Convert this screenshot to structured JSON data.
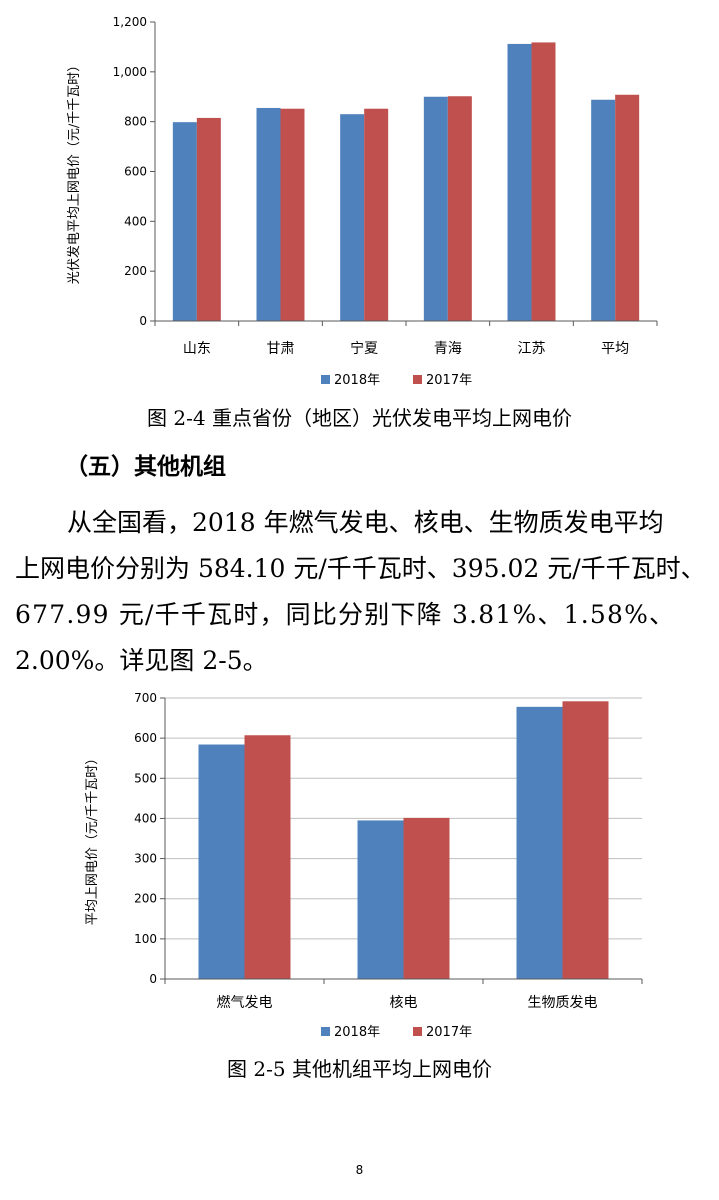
{
  "chart_data": [
    {
      "type": "bar",
      "categories": [
        "山东",
        "甘肃",
        "宁夏",
        "青海",
        "江苏",
        "平均"
      ],
      "series": [
        {
          "name": "2018年",
          "values": [
            798,
            855,
            830,
            900,
            1112,
            888
          ]
        },
        {
          "name": "2017年",
          "values": [
            815,
            852,
            852,
            902,
            1118,
            908
          ]
        }
      ],
      "ylabel": "光伏发电平均上网电价（元/千千瓦时）",
      "ylim": [
        0,
        1200
      ],
      "yticks": [
        "0",
        "200",
        "400",
        "600",
        "800",
        "1,000",
        "1,200"
      ],
      "grid": false,
      "legend": "bottom",
      "colors": [
        "#4f81bd",
        "#c0504d"
      ]
    },
    {
      "type": "bar",
      "categories": [
        "燃气发电",
        "核电",
        "生物质发电"
      ],
      "series": [
        {
          "name": "2018年",
          "values": [
            584.1,
            395.02,
            677.99
          ]
        },
        {
          "name": "2017年",
          "values": [
            607.21,
            401.36,
            691.82
          ]
        }
      ],
      "ylabel": "平均上网电价（元/千千瓦时）",
      "ylim": [
        0,
        700
      ],
      "yticks": [
        "0",
        "100",
        "200",
        "300",
        "400",
        "500",
        "600",
        "700"
      ],
      "grid": true,
      "legend": "bottom",
      "colors": [
        "#4f81bd",
        "#c0504d"
      ]
    }
  ],
  "figure1": {
    "caption": "图 2-4 重点省份（地区）光伏发电平均上网电价"
  },
  "section": {
    "heading": "（五）其他机组"
  },
  "paragraph": {
    "line1": "从全国看，2018 年燃气发电、核电、生物质发电平均",
    "line2": "上网电价分别为 584.10 元/千千瓦时、395.02 元/千千瓦时、",
    "line3": "677.99 元/千千瓦时，同比分别下降 3.81%、1.58%、",
    "line4": "2.00%。详见图 2-5。"
  },
  "figure2": {
    "caption": "图 2-5 其他机组平均上网电价"
  },
  "page_number": "8"
}
